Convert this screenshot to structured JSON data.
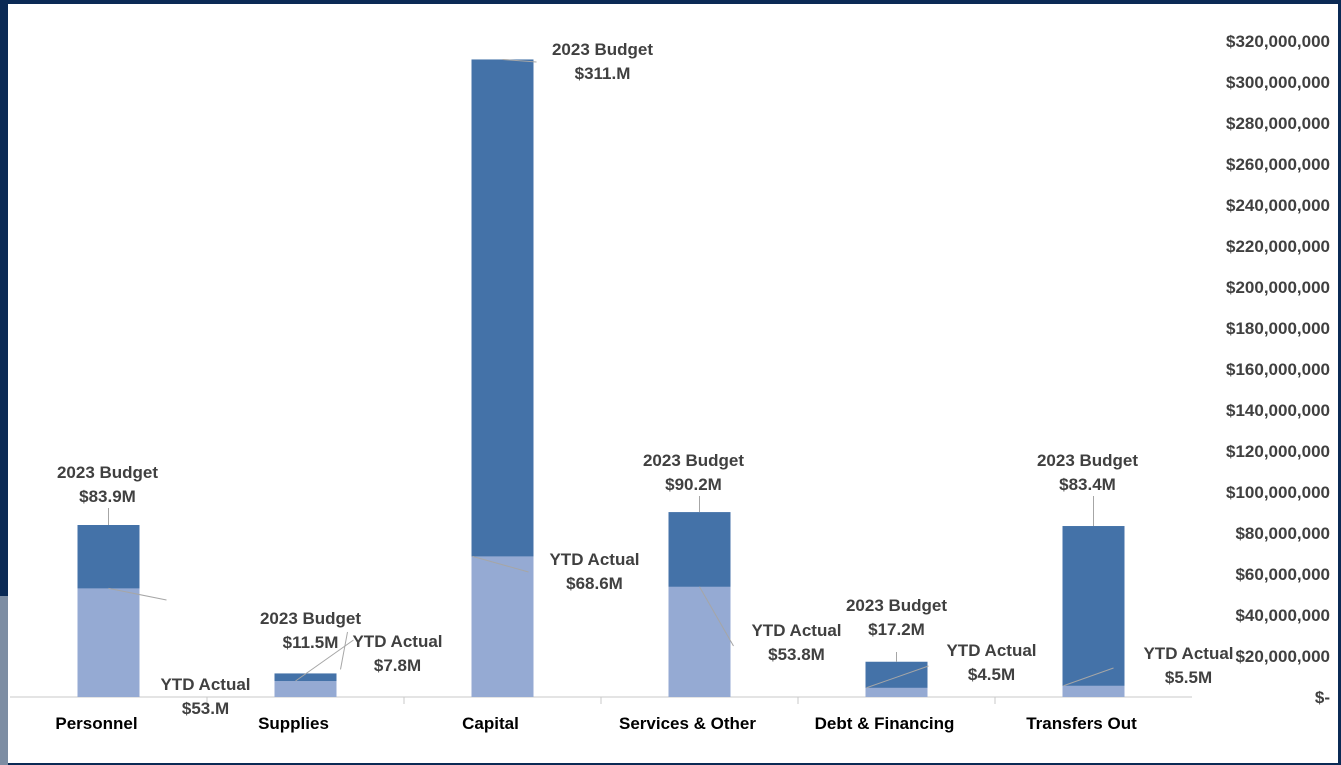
{
  "chart_data": {
    "type": "bar",
    "stacked_overlay": true,
    "categories": [
      "Personnel",
      "Supplies",
      "Capital",
      "Services & Other",
      "Debt & Financing",
      "Transfers Out"
    ],
    "series": [
      {
        "name": "2023 Budget",
        "values": [
          83.9,
          11.5,
          311.0,
          90.2,
          17.2,
          83.4
        ],
        "color": "#4472a8",
        "labels": [
          "$83.9M",
          "$11.5M",
          "$311.M",
          "$90.2M",
          "$17.2M",
          "$83.4M"
        ]
      },
      {
        "name": "YTD Actual",
        "values": [
          53.0,
          7.8,
          68.6,
          53.8,
          4.5,
          5.5
        ],
        "color": "#95aad3",
        "labels": [
          "$53.M",
          "$7.8M",
          "$68.6M",
          "$53.8M",
          "$4.5M",
          "$5.5M"
        ]
      }
    ],
    "value_unit": "$ millions",
    "yaxis": {
      "position": "right",
      "ylim": [
        0,
        320
      ],
      "tick_labels": [
        "$-",
        "$20,000,000",
        "$40,000,000",
        "$60,000,000",
        "$80,000,000",
        "$100,000,000",
        "$120,000,000",
        "$140,000,000",
        "$160,000,000",
        "$180,000,000",
        "$200,000,000",
        "$220,000,000",
        "$240,000,000",
        "$260,000,000",
        "$280,000,000",
        "$300,000,000",
        "$320,000,000"
      ]
    },
    "grid": false,
    "legend": "none"
  },
  "colors": {
    "border": "#0b2a55",
    "budget": "#4472a8",
    "actual": "#95aad3",
    "text": "#404040"
  }
}
